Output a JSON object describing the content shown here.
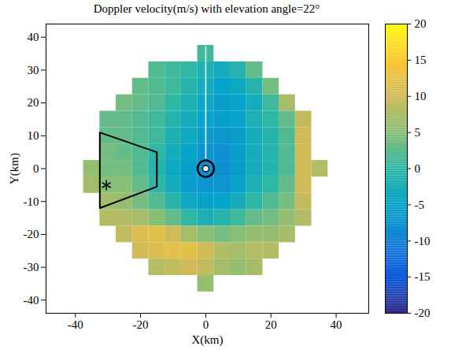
{
  "chart_data": {
    "type": "heatmap",
    "title": "Doppler velocity(m/s) with elevation angle=22°",
    "x_label": "X(km)",
    "y_label": "Y(km)",
    "xlim": [
      -49,
      50
    ],
    "xticks": [
      -40,
      -20,
      0,
      20,
      40
    ],
    "ylim": [
      -44,
      44
    ],
    "yticks": [
      -40,
      -30,
      -20,
      -10,
      0,
      10,
      20,
      30,
      40
    ],
    "grid": false,
    "cells": {
      "x": [
        -35,
        -30,
        -25,
        -20,
        -15,
        -10,
        -5,
        0,
        5,
        10,
        15,
        20,
        25,
        30,
        35
      ],
      "y": [
        35,
        30,
        25,
        20,
        15,
        10,
        5,
        0,
        -5,
        -10,
        -15,
        -20,
        -25,
        -30,
        -35
      ],
      "values": [
        [
          null,
          null,
          null,
          null,
          null,
          null,
          null,
          1,
          null,
          null,
          null,
          null,
          null,
          null,
          null
        ],
        [
          null,
          null,
          null,
          null,
          2,
          1,
          0,
          -2,
          -3,
          -1,
          3,
          null,
          null,
          null,
          null
        ],
        [
          null,
          null,
          null,
          3,
          2,
          1,
          -1,
          -3,
          -5,
          -4,
          -1,
          4,
          null,
          null,
          null
        ],
        [
          null,
          null,
          4,
          3,
          2,
          0,
          -2,
          -4,
          -6,
          -5,
          -3,
          1,
          7,
          null,
          null
        ],
        [
          null,
          3,
          3,
          2,
          1,
          -1,
          -3,
          -5,
          -6,
          -5,
          -2,
          0,
          3,
          9,
          null
        ],
        [
          null,
          3,
          3,
          2,
          1,
          -2,
          -4,
          -6,
          -7,
          -6,
          -3,
          -1,
          2,
          10,
          null
        ],
        [
          null,
          4,
          3,
          2,
          0,
          -3,
          -5,
          -7,
          -8,
          -6,
          -3,
          -1,
          2,
          10,
          null
        ],
        [
          6,
          4,
          4,
          2,
          -1,
          -4,
          -6,
          -8,
          -8,
          -6,
          -3,
          -1,
          2,
          10,
          8
        ],
        [
          7,
          5,
          5,
          3,
          0,
          -3,
          -6,
          -7,
          -7,
          -5,
          -2,
          0,
          3,
          10,
          null
        ],
        [
          null,
          7,
          6,
          4,
          2,
          -1,
          -4,
          -5,
          -5,
          -3,
          0,
          2,
          4,
          9,
          null
        ],
        [
          null,
          8,
          8,
          7,
          5,
          3,
          0,
          -2,
          -1,
          1,
          3,
          4,
          6,
          8,
          null
        ],
        [
          null,
          null,
          9,
          11,
          12,
          10,
          7,
          5,
          4,
          5,
          6,
          6,
          7,
          null,
          null
        ],
        [
          null,
          null,
          null,
          10,
          11,
          12,
          12,
          10,
          8,
          7,
          8,
          8,
          null,
          null,
          null
        ],
        [
          null,
          null,
          null,
          null,
          8,
          9,
          10,
          9,
          7,
          6,
          7,
          null,
          null,
          null,
          null
        ],
        [
          null,
          null,
          null,
          null,
          null,
          null,
          null,
          6,
          null,
          null,
          null,
          null,
          null,
          null,
          null
        ]
      ]
    },
    "colorbar": {
      "range": [
        -20,
        20
      ],
      "ticks": [
        -20,
        -15,
        -10,
        -5,
        0,
        5,
        10,
        15,
        20
      ]
    },
    "polygon": {
      "x": [
        -32.5,
        -15,
        -15,
        -32.5
      ],
      "y": [
        11,
        5,
        -5.5,
        -12
      ]
    },
    "star": {
      "x": -30.5,
      "y": -5,
      "marker": "asterisk"
    },
    "range_ring": {
      "x": 0,
      "y": 0,
      "radius": 2.5
    },
    "radar": {
      "x": 0,
      "y": 0
    },
    "gap_beam": {
      "x": 0,
      "y1": 3,
      "y2": 37
    }
  }
}
